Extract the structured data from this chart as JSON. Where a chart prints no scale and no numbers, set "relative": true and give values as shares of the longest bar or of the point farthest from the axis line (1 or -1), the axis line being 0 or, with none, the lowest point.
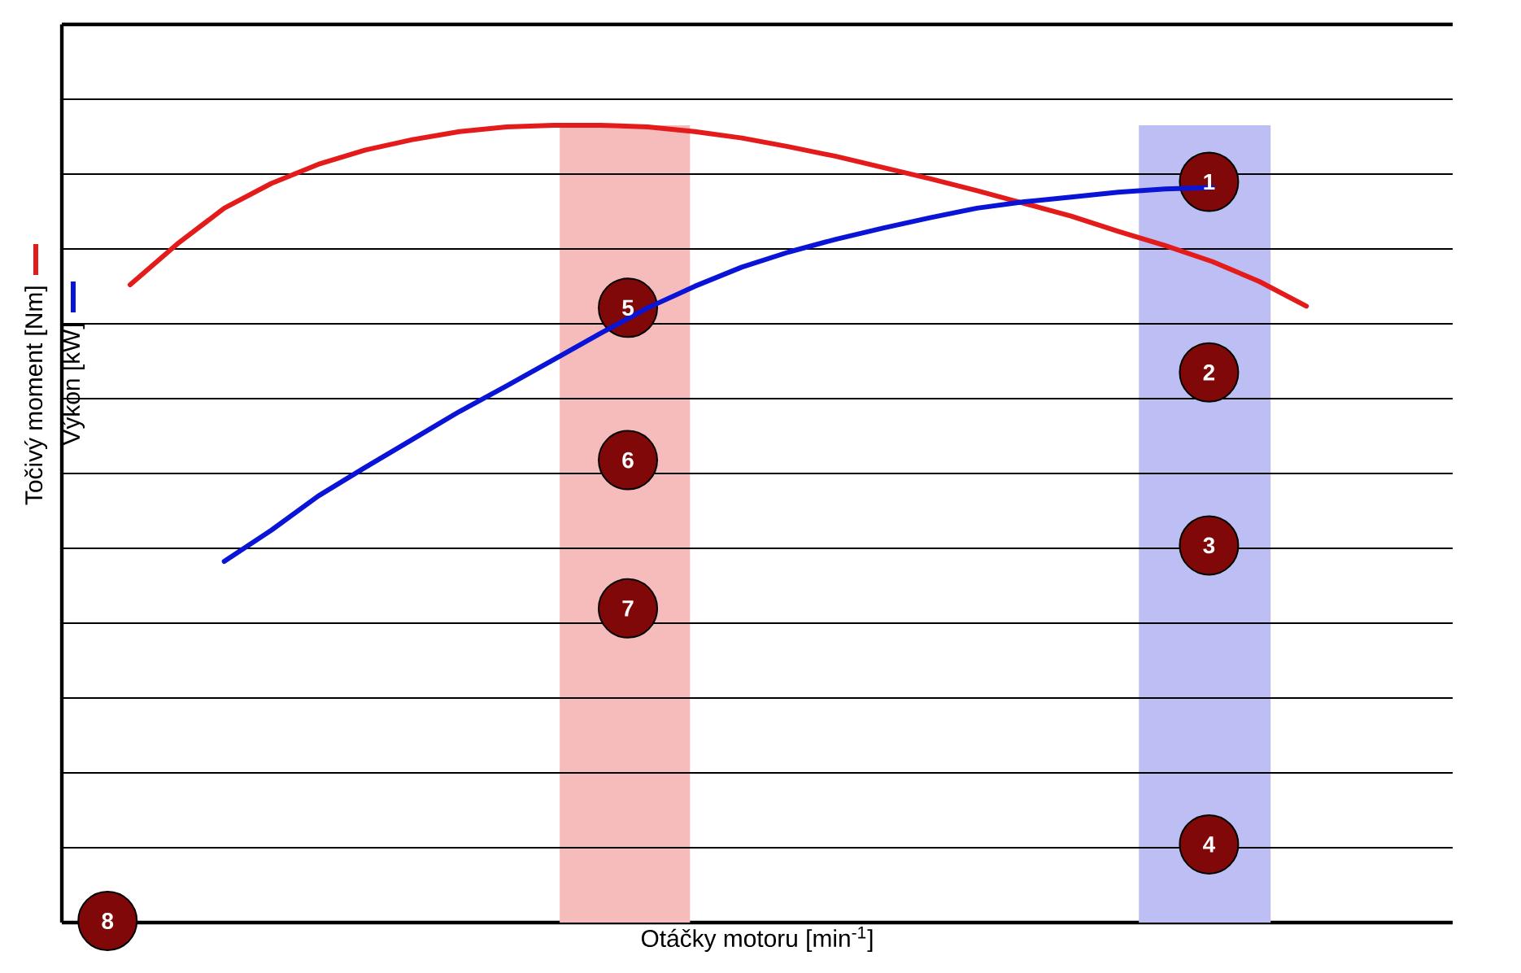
{
  "chart_data": {
    "type": "line",
    "relative": true,
    "xlabel": "Otáčky motoru [min$^{-1}$]",
    "legend": "left",
    "grid": "y",
    "categories": [
      null,
      null,
      null,
      null,
      null,
      null,
      null,
      null,
      null,
      null,
      null,
      null,
      null,
      null,
      null,
      null,
      null,
      null,
      null,
      null,
      null,
      null,
      null,
      null,
      null,
      null
    ],
    "series": [
      {
        "name": "Točivý moment [Nm]",
        "color": "#e31b1b",
        "values": [
          0.8,
          0.851,
          0.896,
          0.927,
          0.951,
          0.969,
          0.982,
          0.992,
          0.998,
          1.0,
          1.0,
          0.998,
          0.992,
          0.984,
          0.973,
          0.961,
          0.947,
          0.933,
          0.918,
          0.902,
          0.886,
          0.867,
          0.849,
          0.829,
          0.804,
          0.773
        ]
      },
      {
        "name": "Výkon [kW]",
        "color": "#0a14d6",
        "values": [
          null,
          null,
          0.453,
          0.492,
          0.535,
          0.571,
          0.606,
          0.641,
          0.673,
          0.706,
          0.739,
          0.771,
          0.798,
          0.822,
          0.841,
          0.857,
          0.871,
          0.884,
          0.896,
          0.904,
          0.91,
          0.916,
          0.92,
          0.922,
          null,
          null
        ]
      }
    ],
    "annotations": [
      "1",
      "2",
      "3",
      "4",
      "5",
      "6",
      "7",
      "8"
    ]
  }
}
